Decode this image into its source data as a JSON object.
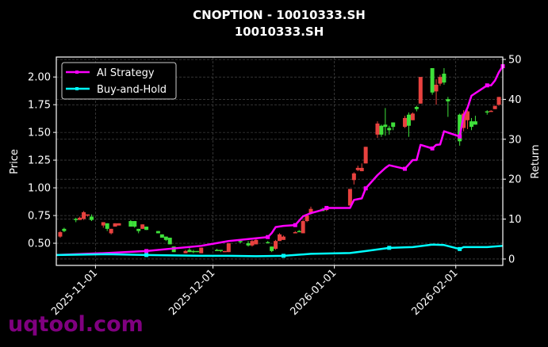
{
  "chart_data": {
    "type": "candlestick+line",
    "title": "CNOPTION - 10010333.SH",
    "subtitle": "10010333.SH",
    "ylabel": "Price",
    "y2label": "Return",
    "xlim": [
      "2025-10-22",
      "2026-02-13"
    ],
    "ylim": [
      0.3,
      2.18
    ],
    "y2lim": [
      -1.6,
      50.6
    ],
    "xticks": [
      "2025-11-01",
      "2025-12-01",
      "2026-01-01",
      "2026-02-01"
    ],
    "yticks": [
      "0.50",
      "0.75",
      "1.00",
      "1.25",
      "1.50",
      "1.75",
      "2.00"
    ],
    "y2ticks": [
      "0",
      "10",
      "20",
      "30",
      "40",
      "50"
    ],
    "grid": true,
    "legend_position": "top-left",
    "colors": {
      "up": "#e8423f",
      "down": "#3ee03a",
      "strategy": "#ff00ff",
      "buyhold": "#00ffff",
      "background": "#000000",
      "watermark": "#800080"
    },
    "candles_columns": [
      "date",
      "open",
      "high",
      "low",
      "close"
    ],
    "candles": [
      [
        "2025-10-23",
        0.56,
        0.61,
        0.55,
        0.6
      ],
      [
        "2025-10-24",
        0.63,
        0.64,
        0.6,
        0.61
      ],
      [
        "2025-10-27",
        0.72,
        0.73,
        0.69,
        0.71
      ],
      [
        "2025-10-28",
        0.71,
        0.74,
        0.71,
        0.73
      ],
      [
        "2025-10-29",
        0.72,
        0.79,
        0.71,
        0.78
      ],
      [
        "2025-10-30",
        0.75,
        0.76,
        0.74,
        0.76
      ],
      [
        "2025-10-31",
        0.74,
        0.76,
        0.7,
        0.71
      ],
      [
        "2025-11-03",
        0.66,
        0.69,
        0.64,
        0.69
      ],
      [
        "2025-11-04",
        0.68,
        0.68,
        0.61,
        0.63
      ],
      [
        "2025-11-05",
        0.59,
        0.63,
        0.58,
        0.63
      ],
      [
        "2025-11-06",
        0.65,
        0.68,
        0.65,
        0.68
      ],
      [
        "2025-11-07",
        0.66,
        0.68,
        0.66,
        0.68
      ],
      [
        "2025-11-10",
        0.7,
        0.71,
        0.65,
        0.65
      ],
      [
        "2025-11-11",
        0.7,
        0.7,
        0.64,
        0.65
      ],
      [
        "2025-11-12",
        0.63,
        0.63,
        0.59,
        0.61
      ],
      [
        "2025-11-13",
        0.63,
        0.67,
        0.63,
        0.67
      ],
      [
        "2025-11-14",
        0.65,
        0.65,
        0.62,
        0.62
      ],
      [
        "2025-11-17",
        0.61,
        0.61,
        0.59,
        0.59
      ],
      [
        "2025-11-18",
        0.58,
        0.58,
        0.55,
        0.55
      ],
      [
        "2025-11-19",
        0.56,
        0.56,
        0.52,
        0.53
      ],
      [
        "2025-11-20",
        0.55,
        0.55,
        0.49,
        0.49
      ],
      [
        "2025-11-21",
        0.47,
        0.47,
        0.42,
        0.42
      ],
      [
        "2025-11-24",
        0.41,
        0.44,
        0.41,
        0.43
      ],
      [
        "2025-11-25",
        0.44,
        0.46,
        0.42,
        0.42
      ],
      [
        "2025-11-26",
        0.43,
        0.44,
        0.41,
        0.42
      ],
      [
        "2025-11-27",
        0.43,
        0.43,
        0.42,
        0.42
      ],
      [
        "2025-11-28",
        0.41,
        0.46,
        0.41,
        0.46
      ],
      [
        "2025-12-02",
        0.44,
        0.45,
        0.43,
        0.43
      ],
      [
        "2025-12-03",
        0.44,
        0.44,
        0.42,
        0.43
      ],
      [
        "2025-12-04",
        0.42,
        0.43,
        0.42,
        0.43
      ],
      [
        "2025-12-05",
        0.42,
        0.5,
        0.42,
        0.5
      ],
      [
        "2025-12-08",
        0.52,
        0.53,
        0.5,
        0.51
      ],
      [
        "2025-12-10",
        0.5,
        0.52,
        0.47,
        0.48
      ],
      [
        "2025-12-11",
        0.48,
        0.53,
        0.47,
        0.52
      ],
      [
        "2025-12-12",
        0.49,
        0.54,
        0.49,
        0.53
      ],
      [
        "2025-12-15",
        0.51,
        0.52,
        0.5,
        0.5
      ],
      [
        "2025-12-16",
        0.47,
        0.47,
        0.42,
        0.43
      ],
      [
        "2025-12-17",
        0.45,
        0.53,
        0.44,
        0.52
      ],
      [
        "2025-12-18",
        0.52,
        0.59,
        0.52,
        0.58
      ],
      [
        "2025-12-19",
        0.53,
        0.57,
        0.53,
        0.56
      ],
      [
        "2025-12-22",
        0.59,
        0.61,
        0.59,
        0.6
      ],
      [
        "2025-12-23",
        0.61,
        0.62,
        0.6,
        0.6
      ],
      [
        "2025-12-24",
        0.59,
        0.71,
        0.59,
        0.7
      ],
      [
        "2025-12-25",
        0.7,
        0.76,
        0.69,
        0.75
      ],
      [
        "2025-12-26",
        0.77,
        0.83,
        0.76,
        0.81
      ],
      [
        "2025-12-29",
        0.81,
        0.82,
        0.79,
        0.79
      ],
      [
        "2025-12-30",
        0.8,
        0.82,
        0.79,
        0.81
      ],
      [
        "2026-01-05",
        0.84,
        0.99,
        0.84,
        0.99
      ],
      [
        "2026-01-06",
        1.07,
        1.14,
        1.03,
        1.13
      ],
      [
        "2026-01-07",
        1.16,
        1.2,
        1.15,
        1.18
      ],
      [
        "2026-01-08",
        1.15,
        1.22,
        1.15,
        1.18
      ],
      [
        "2026-01-09",
        1.22,
        1.37,
        1.22,
        1.37
      ],
      [
        "2026-01-12",
        1.48,
        1.6,
        1.45,
        1.58
      ],
      [
        "2026-01-13",
        1.56,
        1.57,
        1.46,
        1.48
      ],
      [
        "2026-01-14",
        1.57,
        1.72,
        1.47,
        1.55
      ],
      [
        "2026-01-15",
        1.54,
        1.56,
        1.48,
        1.52
      ],
      [
        "2026-01-16",
        1.59,
        1.59,
        1.52,
        1.55
      ],
      [
        "2026-01-19",
        1.55,
        1.65,
        1.54,
        1.63
      ],
      [
        "2026-01-20",
        1.66,
        1.68,
        1.46,
        1.56
      ],
      [
        "2026-01-21",
        1.61,
        1.68,
        1.61,
        1.67
      ],
      [
        "2026-01-22",
        1.73,
        1.74,
        1.69,
        1.71
      ],
      [
        "2026-01-23",
        1.76,
        2.0,
        1.76,
        2.0
      ],
      [
        "2026-01-26",
        2.08,
        2.08,
        1.84,
        1.86
      ],
      [
        "2026-01-27",
        1.87,
        1.98,
        1.75,
        1.93
      ],
      [
        "2026-01-28",
        1.94,
        2.02,
        1.92,
        2.0
      ],
      [
        "2026-01-29",
        2.03,
        2.08,
        1.93,
        1.95
      ],
      [
        "2026-01-30",
        1.8,
        1.82,
        1.64,
        1.78
      ],
      [
        "2026-02-02",
        1.66,
        1.67,
        1.38,
        1.42
      ],
      [
        "2026-02-03",
        1.54,
        1.7,
        1.51,
        1.67
      ],
      [
        "2026-02-04",
        1.61,
        1.7,
        1.53,
        1.69
      ],
      [
        "2026-02-05",
        1.6,
        1.63,
        1.52,
        1.55
      ],
      [
        "2026-02-06",
        1.6,
        1.65,
        1.57,
        1.57
      ],
      [
        "2026-02-09",
        1.69,
        1.7,
        1.66,
        1.68
      ],
      [
        "2026-02-10",
        1.69,
        1.7,
        1.69,
        1.695
      ],
      [
        "2026-02-11",
        1.71,
        1.74,
        1.71,
        1.74
      ],
      [
        "2026-02-12",
        1.75,
        1.82,
        1.74,
        1.82
      ]
    ],
    "series": [
      {
        "name": "AI Strategy",
        "axis": "right",
        "x": [
          "2025-10-22",
          "2025-11-04",
          "2025-11-14",
          "2025-11-28",
          "2025-12-05",
          "2025-12-12",
          "2025-12-15",
          "2025-12-16",
          "2025-12-17",
          "2025-12-19",
          "2025-12-22",
          "2025-12-24",
          "2025-12-26",
          "2025-12-29",
          "2025-12-30",
          "2026-01-05",
          "2026-01-06",
          "2026-01-08",
          "2026-01-09",
          "2026-01-12",
          "2026-01-14",
          "2026-01-15",
          "2026-01-19",
          "2026-01-21",
          "2026-01-22",
          "2026-01-23",
          "2026-01-26",
          "2026-01-27",
          "2026-01-28",
          "2026-01-29",
          "2026-02-02",
          "2026-02-03",
          "2026-02-04",
          "2026-02-05",
          "2026-02-09",
          "2026-02-10",
          "2026-02-11",
          "2026-02-12",
          "2026-02-13"
        ],
        "values": [
          1.0,
          1.5,
          2.0,
          3.3,
          4.5,
          5.2,
          5.5,
          6.5,
          8.0,
          8.3,
          8.5,
          10.7,
          11.5,
          12.3,
          12.8,
          12.8,
          14.8,
          15.2,
          17.7,
          21.0,
          22.8,
          23.5,
          22.6,
          24.8,
          24.8,
          28.6,
          27.7,
          28.6,
          28.7,
          32.0,
          30.7,
          35.9,
          37.9,
          40.9,
          43.5,
          43.5,
          44.7,
          46.8,
          48.3
        ]
      },
      {
        "name": "Buy-and-Hold",
        "axis": "right",
        "x": [
          "2025-10-22",
          "2025-11-04",
          "2025-11-14",
          "2025-11-28",
          "2025-12-05",
          "2025-12-12",
          "2025-12-19",
          "2025-12-26",
          "2026-01-05",
          "2026-01-09",
          "2026-01-15",
          "2026-01-21",
          "2026-01-26",
          "2026-01-29",
          "2026-02-02",
          "2026-02-03",
          "2026-02-09",
          "2026-02-13"
        ],
        "values": [
          1.0,
          1.2,
          1.0,
          0.8,
          0.8,
          0.7,
          0.8,
          1.3,
          1.5,
          2.0,
          2.8,
          3.0,
          3.6,
          3.5,
          2.5,
          3.0,
          3.0,
          3.3
        ]
      }
    ]
  },
  "watermark": "uqtool.com"
}
